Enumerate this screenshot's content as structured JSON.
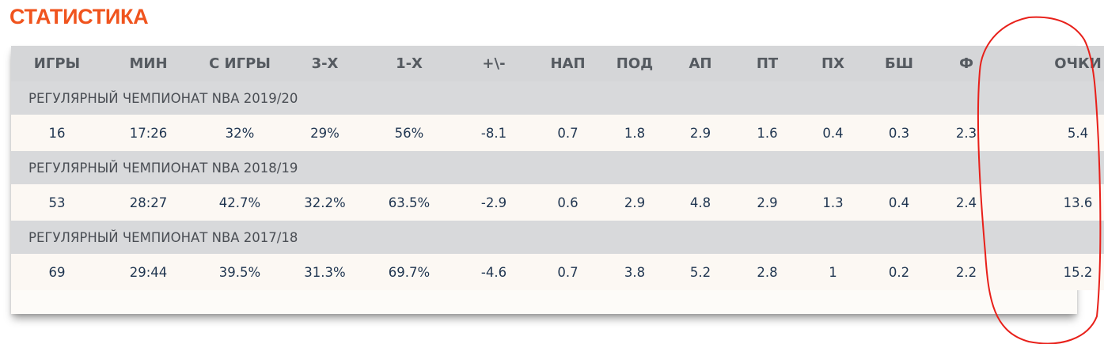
{
  "title": "СТАТИСТИКА",
  "columns": [
    "ИГРЫ",
    "МИН",
    "С ИГРЫ",
    "3-Х",
    "1-Х",
    "+\\-",
    "НАП",
    "ПОД",
    "АП",
    "ПТ",
    "ПХ",
    "БШ",
    "Ф",
    "ОЧКИ"
  ],
  "seasons": [
    {
      "label": "РЕГУЛЯРНЫЙ ЧЕМПИОНАТ NBA 2019/20",
      "values": [
        "16",
        "17:26",
        "32%",
        "29%",
        "56%",
        "-8.1",
        "0.7",
        "1.8",
        "2.9",
        "1.6",
        "0.4",
        "0.3",
        "2.3",
        "5.4"
      ]
    },
    {
      "label": "РЕГУЛЯРНЫЙ ЧЕМПИОНАТ NBA 2018/19",
      "values": [
        "53",
        "28:27",
        "42.7%",
        "32.2%",
        "63.5%",
        "-2.9",
        "0.6",
        "2.9",
        "4.8",
        "2.9",
        "1.3",
        "0.4",
        "2.4",
        "13.6"
      ]
    },
    {
      "label": "РЕГУЛЯРНЫЙ ЧЕМПИОНАТ NBA 2017/18",
      "values": [
        "69",
        "29:44",
        "39.5%",
        "31.3%",
        "69.7%",
        "-4.6",
        "0.7",
        "3.8",
        "5.2",
        "2.8",
        "1",
        "0.2",
        "2.2",
        "15.2"
      ]
    }
  ],
  "colors": {
    "title": "#f0541e",
    "header_bg": "#d5d6d8",
    "row_bg": "#fcf8f3",
    "value_text": "#1f3550",
    "annotation": "#e8201a"
  }
}
